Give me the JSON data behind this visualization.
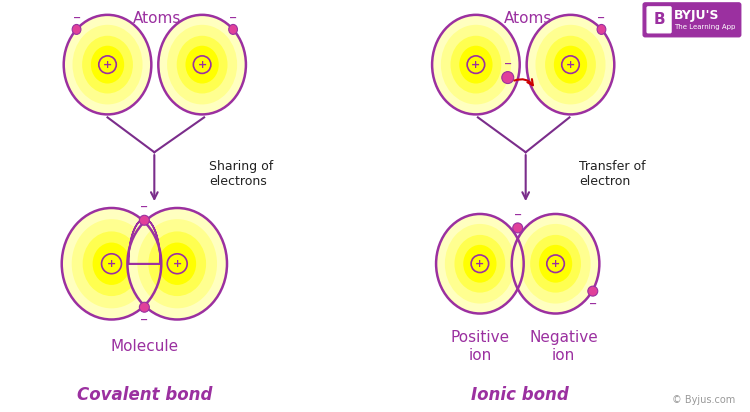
{
  "bg_color": "#ffffff",
  "purple": "#9B30A0",
  "yellow_bright": "#FFFF00",
  "electron_color": "#E0409A",
  "arrow_color": "#7B2D8B",
  "red_arrow": "#CC0000",
  "covalent_label": "Covalent bond",
  "ionic_label": "Ionic bond",
  "atoms_label": "Atoms",
  "molecule_label": "Molecule",
  "positive_ion_label": "Positive\nion",
  "negative_ion_label": "Negative\nion",
  "sharing_label": "Sharing of\nelectrons",
  "transfer_label": "Transfer of\nelectron",
  "byju_text": "© Byjus.com"
}
